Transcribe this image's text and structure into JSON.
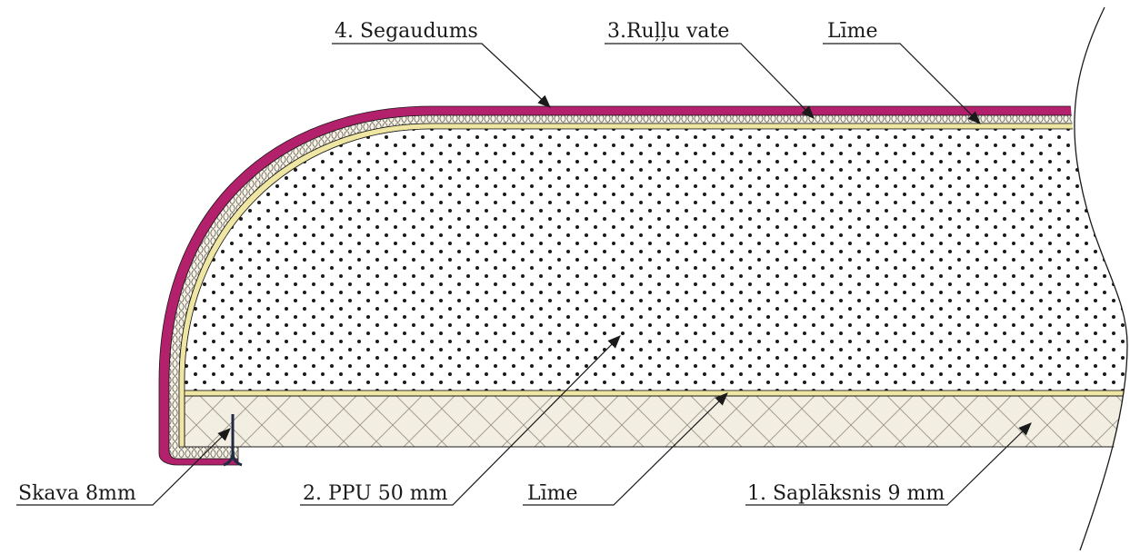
{
  "labels": {
    "segaudums": "4. Segaudums",
    "rullu_vate": "3.Ruļļu vate",
    "lime_top": "Līme",
    "skava": "Skava 8mm",
    "ppu": "2. PPU 50 mm",
    "lime_bottom": "Līme",
    "saplaksnis": "1. Saplāksnis 9 mm"
  },
  "colors": {
    "fabric": "#b3206b",
    "wadding": "#f6f1e2",
    "glue": "#efe6a3",
    "foam_dots": "#1a1a1a",
    "plywood_fill": "#f3eee2",
    "plywood_hatch": "#9a9488",
    "staple": "#1f2a44",
    "line": "#1a1a1a"
  }
}
